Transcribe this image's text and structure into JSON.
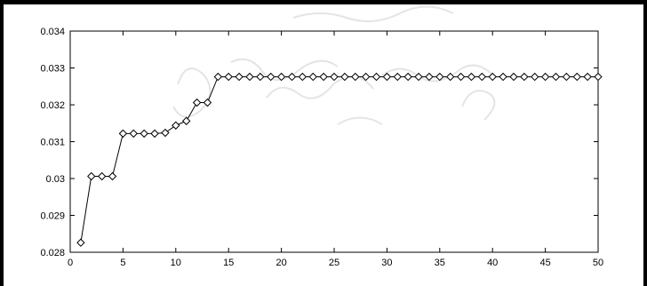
{
  "chart_data": {
    "type": "line",
    "title": "",
    "xlabel": "",
    "ylabel": "",
    "xlim": [
      0,
      50
    ],
    "ylim": [
      0.028,
      0.034
    ],
    "xticks": [
      0,
      5,
      10,
      15,
      20,
      25,
      30,
      35,
      40,
      45,
      50
    ],
    "xtick_labels": [
      "0",
      "5",
      "10",
      "15",
      "20",
      "25",
      "30",
      "35",
      "40",
      "45",
      "50"
    ],
    "yticks": [
      0.028,
      0.029,
      0.03,
      0.031,
      0.032,
      0.033,
      0.034
    ],
    "ytick_labels": [
      "0.028",
      "0.029",
      "0.03",
      "0.031",
      "0.032",
      "0.033",
      "0.034"
    ],
    "grid": false,
    "marker": "diamond",
    "line_color": "#000000",
    "series": [
      {
        "x": [
          1,
          2,
          3,
          4,
          5,
          6,
          7,
          8,
          9,
          10,
          11,
          12,
          13,
          14,
          15,
          16,
          17,
          18,
          19,
          20,
          21,
          22,
          23,
          24,
          25,
          26,
          27,
          28,
          29,
          30,
          31,
          32,
          33,
          34,
          35,
          36,
          37,
          38,
          39,
          40,
          41,
          42,
          43,
          44,
          45,
          46,
          47,
          48,
          49,
          50
        ],
        "y": [
          0.02826,
          0.03006,
          0.03006,
          0.03006,
          0.03122,
          0.03122,
          0.03122,
          0.03122,
          0.03124,
          0.03144,
          0.03156,
          0.03206,
          0.03206,
          0.03276,
          0.03276,
          0.03276,
          0.03276,
          0.03276,
          0.03276,
          0.03276,
          0.03276,
          0.03276,
          0.03276,
          0.03276,
          0.03276,
          0.03276,
          0.03276,
          0.03276,
          0.03276,
          0.03276,
          0.03276,
          0.03276,
          0.03276,
          0.03276,
          0.03276,
          0.03276,
          0.03276,
          0.03276,
          0.03276,
          0.03276,
          0.03276,
          0.03276,
          0.03276,
          0.03276,
          0.03276,
          0.03276,
          0.03276,
          0.03276,
          0.03276,
          0.03276
        ]
      }
    ]
  }
}
